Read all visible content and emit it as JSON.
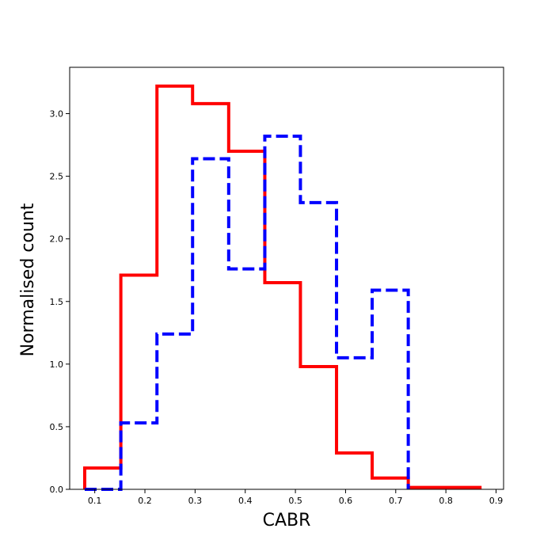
{
  "chart_data": {
    "type": "histogram-step",
    "title": "",
    "xlabel": "CABR",
    "ylabel": "Normalised count",
    "xlim": [
      0.05,
      0.915
    ],
    "ylim": [
      0.0,
      3.37
    ],
    "x_ticks": [
      0.1,
      0.2,
      0.3,
      0.4,
      0.5,
      0.6,
      0.7,
      0.8,
      0.9
    ],
    "x_tick_labels": [
      "0.1",
      "0.2",
      "0.3",
      "0.4",
      "0.5",
      "0.6",
      "0.7",
      "0.8",
      "0.9"
    ],
    "y_ticks": [
      0.0,
      0.5,
      1.0,
      1.5,
      2.0,
      2.5,
      3.0
    ],
    "y_tick_labels": [
      "0.0",
      "0.5",
      "1.0",
      "1.5",
      "2.0",
      "2.5",
      "3.0"
    ],
    "grid": false,
    "legend": "none",
    "series": [
      {
        "color": "#ff0000",
        "style": "solid",
        "bin_edges": [
          0.08,
          0.152,
          0.224,
          0.295,
          0.367,
          0.439,
          0.51,
          0.582,
          0.653,
          0.725,
          0.797,
          0.868
        ],
        "values": [
          0.17,
          1.71,
          3.22,
          3.08,
          2.7,
          1.65,
          0.98,
          0.29,
          0.09,
          0.015,
          0.015
        ]
      },
      {
        "color": "#0000ff",
        "style": "dashed",
        "bin_edges": [
          0.08,
          0.152,
          0.224,
          0.295,
          0.367,
          0.439,
          0.51,
          0.582,
          0.653,
          0.725
        ],
        "values": [
          0.0,
          0.53,
          1.24,
          2.64,
          1.76,
          2.82,
          2.29,
          1.05,
          1.59
        ]
      }
    ]
  }
}
